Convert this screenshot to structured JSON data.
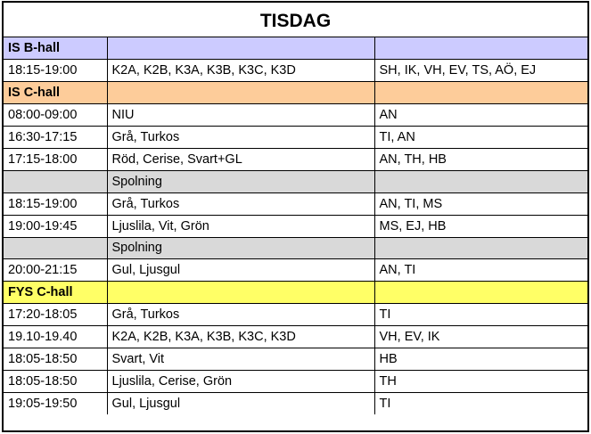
{
  "title": "TISDAG",
  "rows": [
    {
      "kind": "section",
      "color": "#cccbff",
      "label": "IS B-hall"
    },
    {
      "kind": "row",
      "time": "18:15-19:00",
      "groups": "K2A, K2B, K3A, K3B, K3C, K3D",
      "leaders": "SH, IK, VH, EV, TS, AÖ, EJ"
    },
    {
      "kind": "section",
      "color": "#fdcc9a",
      "label": "IS C-hall"
    },
    {
      "kind": "row",
      "time": "08:00-09:00",
      "groups": "NIU",
      "leaders": "AN"
    },
    {
      "kind": "row",
      "time": "16:30-17:15",
      "groups": "Grå, Turkos",
      "leaders": "TI, AN"
    },
    {
      "kind": "row",
      "time": "17:15-18:00",
      "groups": "Röd, Cerise, Svart+GL",
      "leaders": "AN, TH, HB"
    },
    {
      "kind": "spolning",
      "label": "Spolning"
    },
    {
      "kind": "row",
      "time": "18:15-19:00",
      "groups": "Grå, Turkos",
      "leaders": "AN, TI, MS"
    },
    {
      "kind": "row",
      "time": "19:00-19:45",
      "groups": "Ljuslila, Vit, Grön",
      "leaders": "MS, EJ, HB"
    },
    {
      "kind": "spolning",
      "label": "Spolning"
    },
    {
      "kind": "row",
      "time": "20:00-21:15",
      "groups": "Gul, Ljusgul",
      "leaders": "AN, TI"
    },
    {
      "kind": "section",
      "color": "#ffff66",
      "label": "FYS C-hall"
    },
    {
      "kind": "row",
      "time": "17:20-18:05",
      "groups": "Grå, Turkos",
      "leaders": "TI"
    },
    {
      "kind": "row",
      "time": "19.10-19.40",
      "groups": "K2A, K2B, K3A, K3B, K3C, K3D",
      "leaders": "VH, EV, IK"
    },
    {
      "kind": "row",
      "time": "18:05-18:50",
      "groups": "Svart, Vit",
      "leaders": "HB"
    },
    {
      "kind": "row",
      "time": "18:05-18:50",
      "groups": "Ljuslila, Cerise, Grön",
      "leaders": "TH"
    },
    {
      "kind": "row",
      "time": "19:05-19:50",
      "groups": "Gul, Ljusgul",
      "leaders": "TI"
    }
  ]
}
